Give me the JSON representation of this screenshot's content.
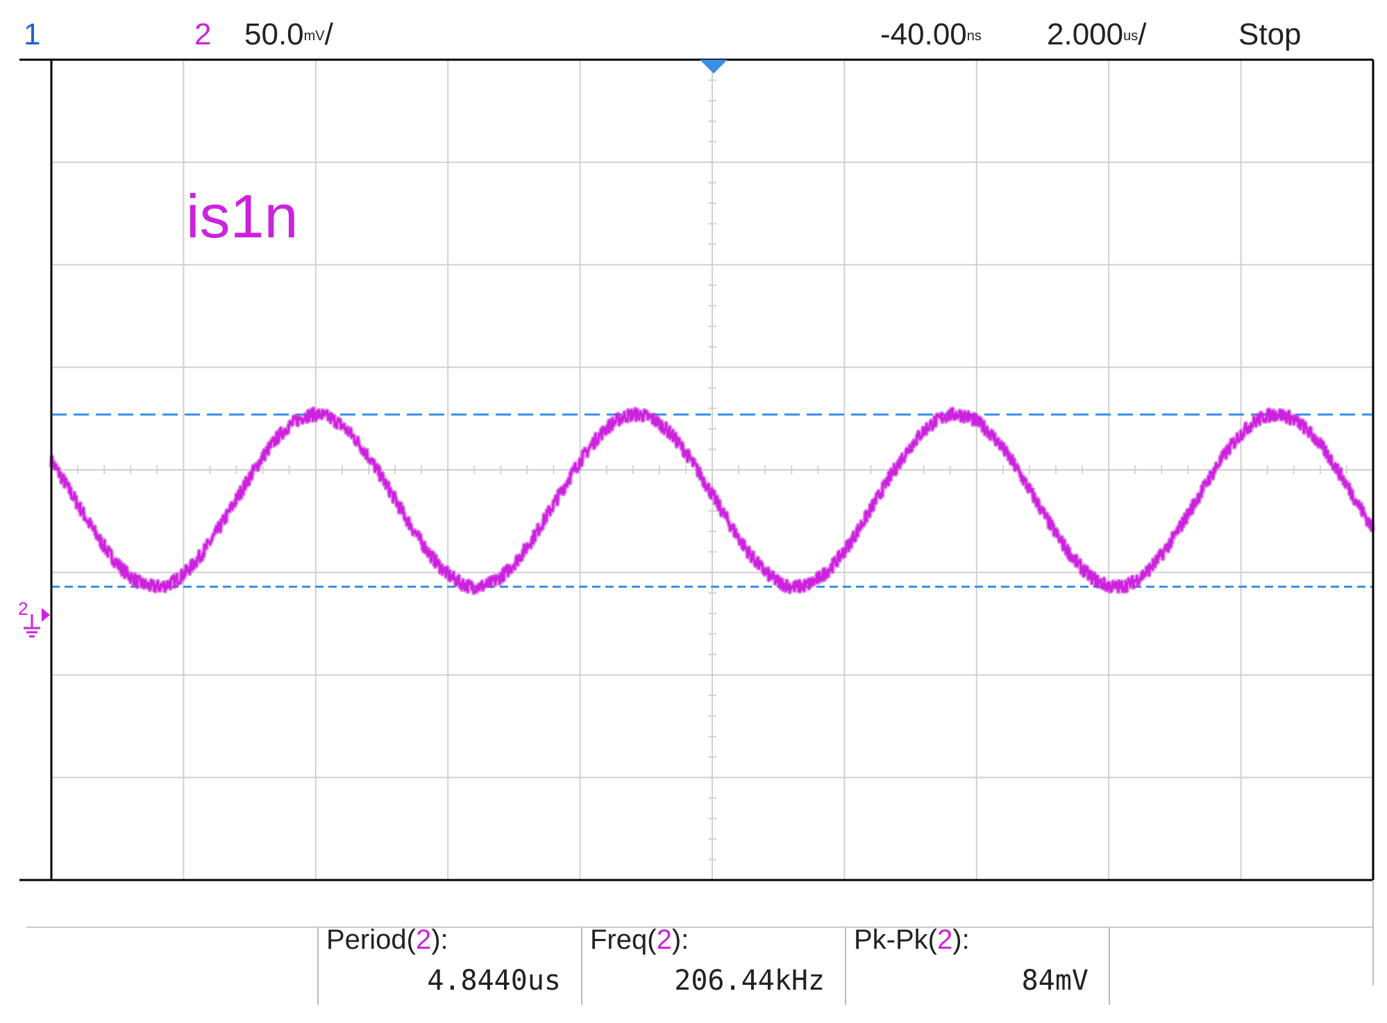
{
  "header": {
    "channel1": "1",
    "channel2": "2",
    "vertical_scale": "50.0",
    "vertical_scale_unit_glyph": "mV",
    "horizontal_delay": "-40.00",
    "horizontal_delay_unit_glyph": "ns",
    "time_per_div": "2.000",
    "time_per_div_unit_glyph": "us",
    "run_state": "Stop"
  },
  "trace_label": "is1n",
  "ground_marker_label": "2",
  "measurements": [
    {
      "label": "Period(",
      "channel": "2",
      "close": "):",
      "value": "4.8440us"
    },
    {
      "label": "Freq(",
      "channel": "2",
      "close": "):",
      "value": "206.44kHz"
    },
    {
      "label": "Pk-Pk(",
      "channel": "2",
      "close": "):",
      "value": "84mV"
    }
  ],
  "colors": {
    "channel1": "#2060d0",
    "channel2": "#cc22dd",
    "cursor": "#3a8ee6",
    "grid": "#d0d0d0",
    "frame": "#000000"
  },
  "chart_data": {
    "type": "line",
    "title": "is1n",
    "xlabel": "",
    "ylabel": "",
    "series": [
      {
        "name": "is1n",
        "waveform": "sine",
        "period_us": 4.844,
        "frequency_khz": 206.44,
        "peak_to_peak_mV": 84,
        "offset_mV": 35,
        "first_peak_us": -6.0,
        "noise_mV_pp": 6
      }
    ],
    "x_range_us": [
      -10,
      10
    ],
    "x_divisions": 10,
    "y_divisions": 8,
    "y_range_mV": [
      -150,
      250
    ],
    "volts_per_div_mV": 50,
    "time_per_div_us": 2,
    "cursors_mV": [
      77,
      -7
    ],
    "cursor_style": "dashed",
    "grid": true
  }
}
